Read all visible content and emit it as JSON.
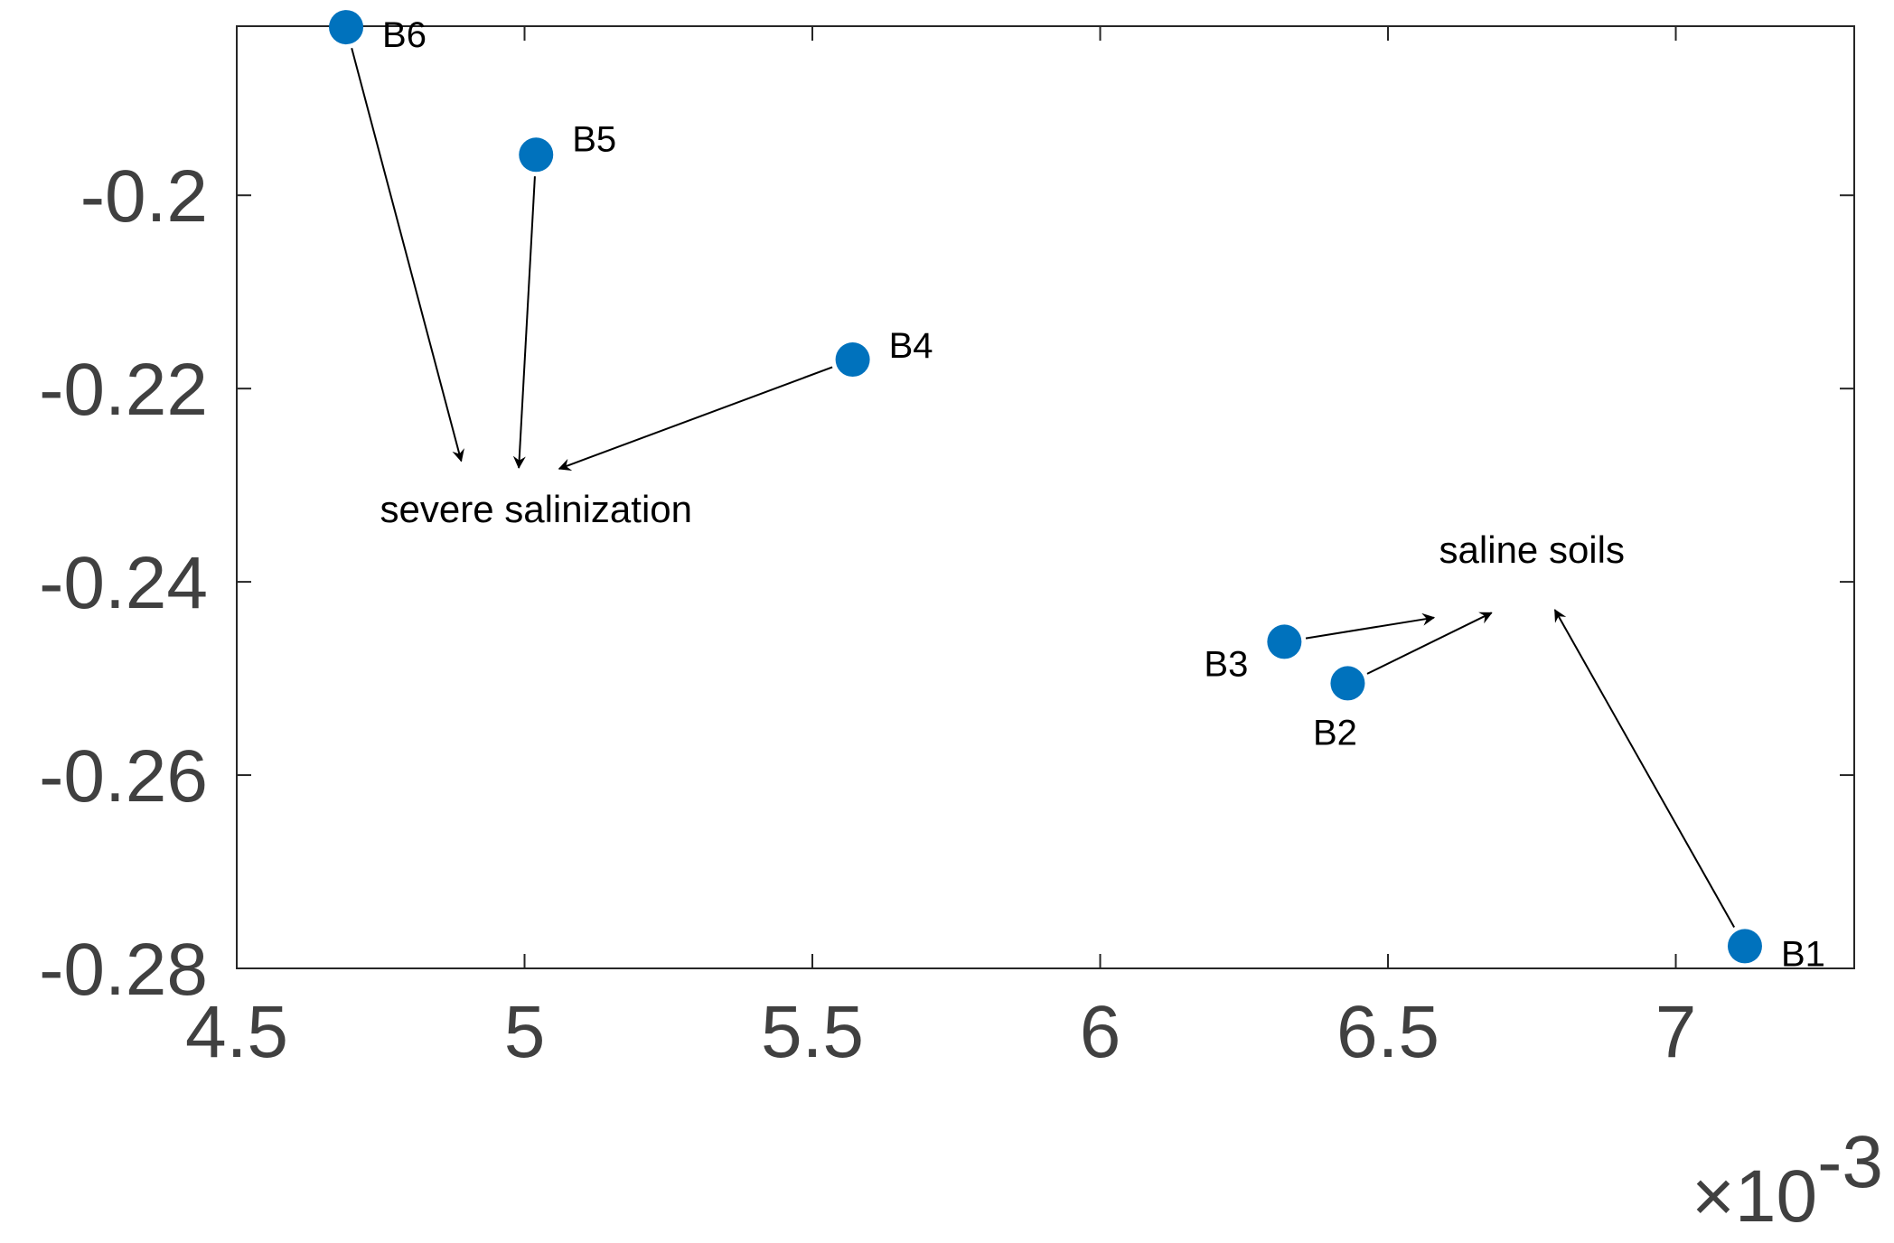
{
  "chart_data": {
    "type": "scatter",
    "x_exponent_text": "×10",
    "x_exponent_power": "-3",
    "xlim": [
      0.0045,
      0.00731
    ],
    "ylim": [
      -0.28,
      -0.1825
    ],
    "x_ticks": [
      {
        "value": 0.0045,
        "label": "4.5"
      },
      {
        "value": 0.005,
        "label": "5"
      },
      {
        "value": 0.0055,
        "label": "5.5"
      },
      {
        "value": 0.006,
        "label": "6"
      },
      {
        "value": 0.0065,
        "label": "6.5"
      },
      {
        "value": 0.007,
        "label": "7"
      }
    ],
    "y_ticks": [
      {
        "value": -0.2,
        "label": "-0.2"
      },
      {
        "value": -0.22,
        "label": "-0.22"
      },
      {
        "value": -0.24,
        "label": "-0.24"
      },
      {
        "value": -0.26,
        "label": "-0.26"
      },
      {
        "value": -0.28,
        "label": "-0.28"
      }
    ],
    "point_color": "#0072BD",
    "points": [
      {
        "label": "B1",
        "x": 0.00712,
        "y": -0.2777,
        "label_pos": "right"
      },
      {
        "label": "B2",
        "x": 0.00643,
        "y": -0.2505,
        "label_pos": "below"
      },
      {
        "label": "B3",
        "x": 0.00632,
        "y": -0.2462,
        "label_pos": "left"
      },
      {
        "label": "B4",
        "x": 0.00557,
        "y": -0.217,
        "label_pos": "right"
      },
      {
        "label": "B5",
        "x": 0.00502,
        "y": -0.1958,
        "label_pos": "right"
      },
      {
        "label": "B6",
        "x": 0.00469,
        "y": -0.1826,
        "label_pos": "right"
      }
    ],
    "annotations": [
      {
        "text": "severe salinization",
        "x": 0.00502,
        "y": -0.2325
      },
      {
        "text": "saline soils",
        "x": 0.00675,
        "y": -0.2367
      }
    ],
    "arrows": [
      {
        "from": "B6",
        "to_x": 0.00489,
        "to_y": -0.2275
      },
      {
        "from": "B5",
        "to_x": 0.00499,
        "to_y": -0.2282
      },
      {
        "from": "B4",
        "to_x": 0.00506,
        "to_y": -0.2283
      },
      {
        "from": "B3",
        "to_x": 0.00658,
        "to_y": -0.2437
      },
      {
        "from": "B2",
        "to_x": 0.00668,
        "to_y": -0.2432
      },
      {
        "from": "B1",
        "to_x": 0.00679,
        "to_y": -0.2429
      }
    ],
    "grid": false,
    "box": true
  }
}
